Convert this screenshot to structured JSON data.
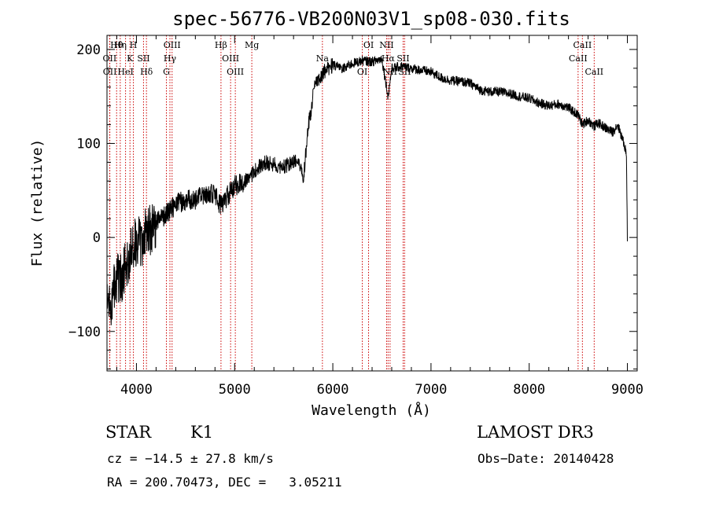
{
  "chart_data": {
    "type": "line",
    "title": "spec-56776-VB200N03V1_sp08-030.fits",
    "xlabel": "Wavelength (Å)",
    "ylabel": "Flux (relative)",
    "xlim": [
      3700,
      9100
    ],
    "ylim": [
      -142,
      215
    ],
    "xticks": [
      4000,
      5000,
      6000,
      7000,
      8000,
      9000
    ],
    "xtick_labels": [
      "4000",
      "5000",
      "6000",
      "7000",
      "8000",
      "9000"
    ],
    "yticks": [
      -100,
      0,
      100,
      200
    ],
    "ytick_labels": [
      "−100",
      "0",
      "100",
      "200"
    ],
    "series": [
      {
        "name": "spectrum",
        "x": [
          3700,
          3750,
          3800,
          3850,
          3900,
          3950,
          4000,
          4050,
          4100,
          4200,
          4300,
          4400,
          4500,
          4600,
          4700,
          4800,
          4850,
          4900,
          5000,
          5100,
          5170,
          5200,
          5300,
          5400,
          5500,
          5600,
          5650,
          5700,
          5750,
          5780,
          5800,
          5850,
          5900,
          5950,
          6000,
          6100,
          6200,
          6300,
          6400,
          6500,
          6563,
          6600,
          6700,
          6800,
          6900,
          7000,
          7100,
          7200,
          7300,
          7400,
          7500,
          7600,
          7700,
          7800,
          7900,
          8000,
          8100,
          8200,
          8300,
          8400,
          8500,
          8542,
          8600,
          8662,
          8700,
          8800,
          8850,
          8900,
          8950,
          8990,
          9000
        ],
        "y": [
          -50,
          -70,
          -40,
          -45,
          -25,
          -15,
          -5,
          -5,
          5,
          15,
          25,
          35,
          40,
          40,
          47,
          45,
          35,
          40,
          55,
          60,
          65,
          70,
          80,
          78,
          75,
          80,
          85,
          60,
          120,
          135,
          155,
          168,
          175,
          180,
          183,
          180,
          185,
          188,
          187,
          190,
          150,
          180,
          182,
          180,
          178,
          176,
          170,
          167,
          166,
          164,
          157,
          155,
          155,
          153,
          150,
          148,
          143,
          140,
          142,
          138,
          130,
          120,
          125,
          118,
          122,
          115,
          112,
          120,
          105,
          90,
          0
        ]
      }
    ],
    "line_markers": [
      {
        "name": "Hθ",
        "wavelength": 3798
      },
      {
        "name": "OII",
        "wavelength": 3727
      },
      {
        "name": "OII",
        "wavelength": 3729
      },
      {
        "name": "Hη",
        "wavelength": 3835
      },
      {
        "name": "K",
        "wavelength": 3934
      },
      {
        "name": "HeI",
        "wavelength": 3889
      },
      {
        "name": "H",
        "wavelength": 3969
      },
      {
        "name": "SII",
        "wavelength": 4072
      },
      {
        "name": "Hδ",
        "wavelength": 4102
      },
      {
        "name": "OIII",
        "wavelength": 4363
      },
      {
        "name": "Hγ",
        "wavelength": 4341
      },
      {
        "name": "G",
        "wavelength": 4305
      },
      {
        "name": "Hβ",
        "wavelength": 4861
      },
      {
        "name": "OIII",
        "wavelength": 4959
      },
      {
        "name": "OIII",
        "wavelength": 5007
      },
      {
        "name": "Mg",
        "wavelength": 5175
      },
      {
        "name": "Na",
        "wavelength": 5894
      },
      {
        "name": "OI",
        "wavelength": 6300
      },
      {
        "name": "OI",
        "wavelength": 6364
      },
      {
        "name": "Hα",
        "wavelength": 6563
      },
      {
        "name": "NII",
        "wavelength": 6583
      },
      {
        "name": "NII",
        "wavelength": 6548
      },
      {
        "name": "SII",
        "wavelength": 6716
      },
      {
        "name": "SII",
        "wavelength": 6731
      },
      {
        "name": "CaII",
        "wavelength": 8542
      },
      {
        "name": "CaII",
        "wavelength": 8498
      },
      {
        "name": "CaII",
        "wavelength": 8662
      }
    ]
  },
  "info": {
    "object_type": "STAR",
    "object_class": "K1",
    "survey": "LAMOST DR3",
    "cz_text": "cz = −14.5 ± 27.8 km/s",
    "obs_date_text": "Obs−Date: 20140428",
    "radec_text": "RA = 200.70473, DEC =   3.05211"
  },
  "colors": {
    "line": "#000000",
    "marker": "#cc0000",
    "axis": "#000000",
    "background": "#ffffff"
  }
}
